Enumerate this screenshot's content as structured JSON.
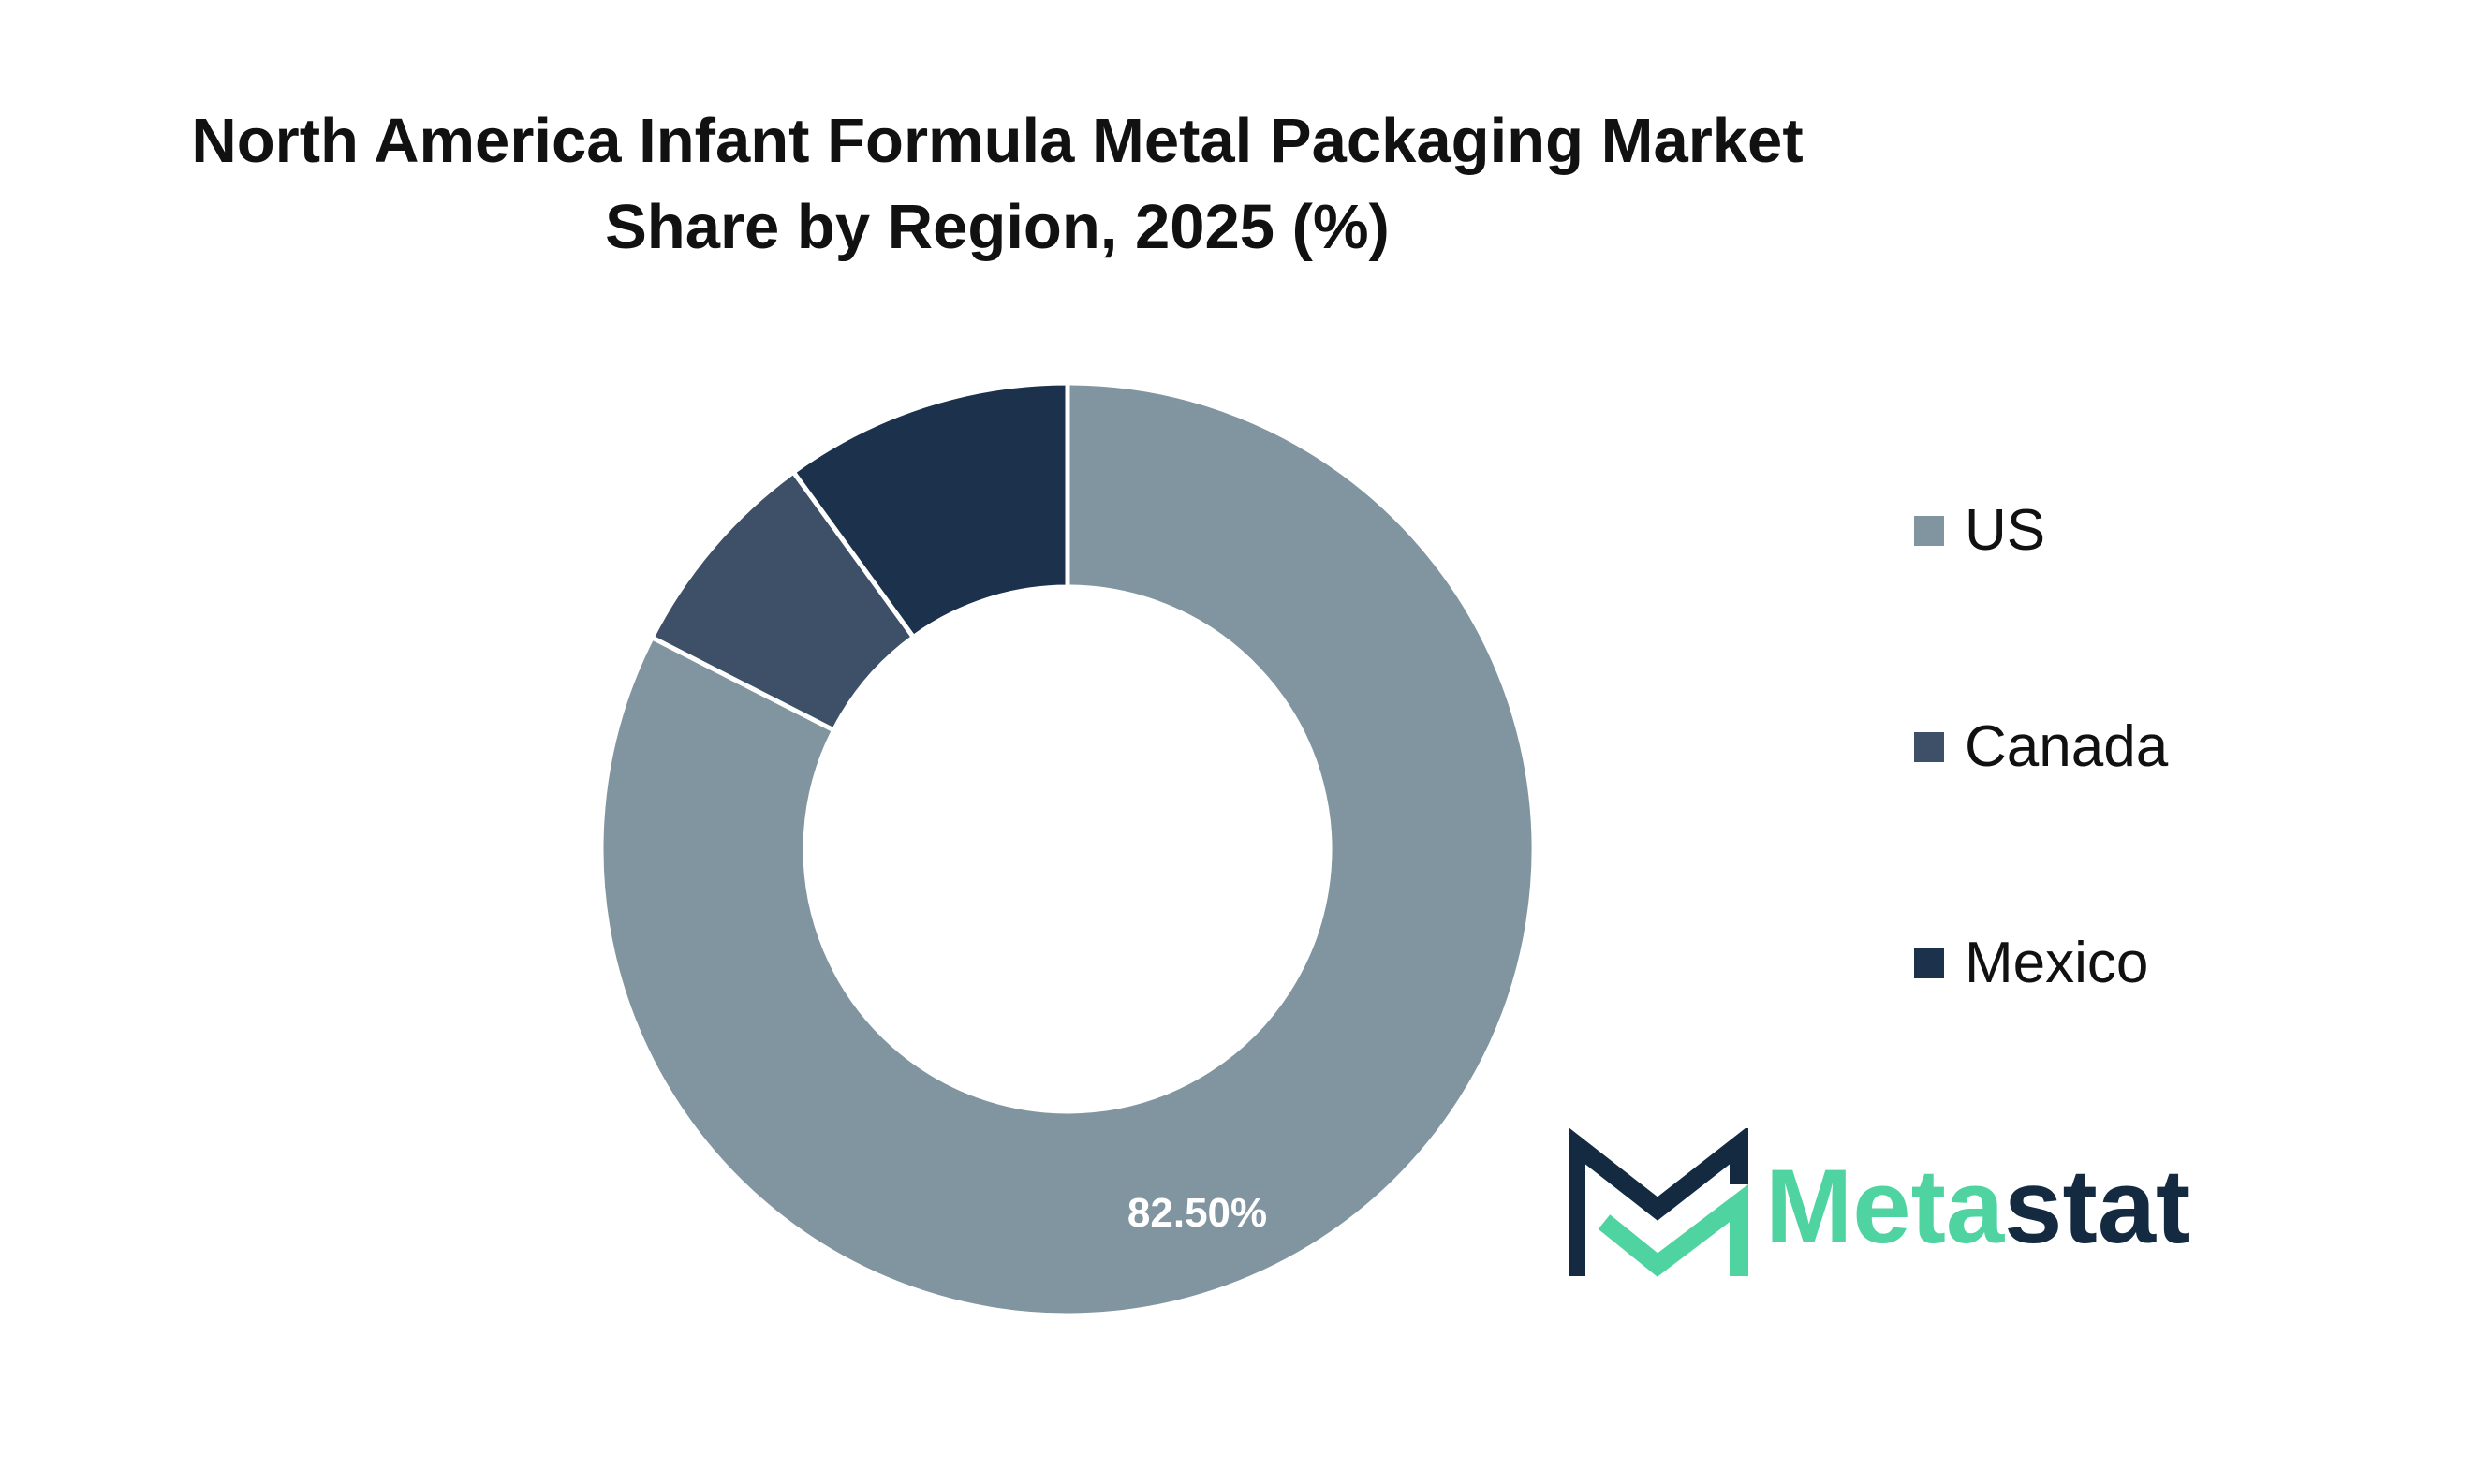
{
  "chart_data": {
    "type": "pie",
    "title_lines": [
      "North America Infant Formula Metal Packaging Market",
      "Share by Region, 2025 (%)"
    ],
    "donut": true,
    "categories": [
      "US",
      "Canada",
      "Mexico"
    ],
    "values": [
      82.5,
      7.5,
      10.0
    ],
    "data_labels": [
      "82.50%",
      "",
      ""
    ],
    "colors": [
      "#80959f",
      "#3d5068",
      "#1b314c"
    ],
    "legend_position": "right"
  },
  "branding": {
    "logo_text_part1": "Meta",
    "logo_text_part2": "stat",
    "logo_colors": {
      "accent": "#4ed3a1",
      "dark": "#132a40"
    }
  }
}
